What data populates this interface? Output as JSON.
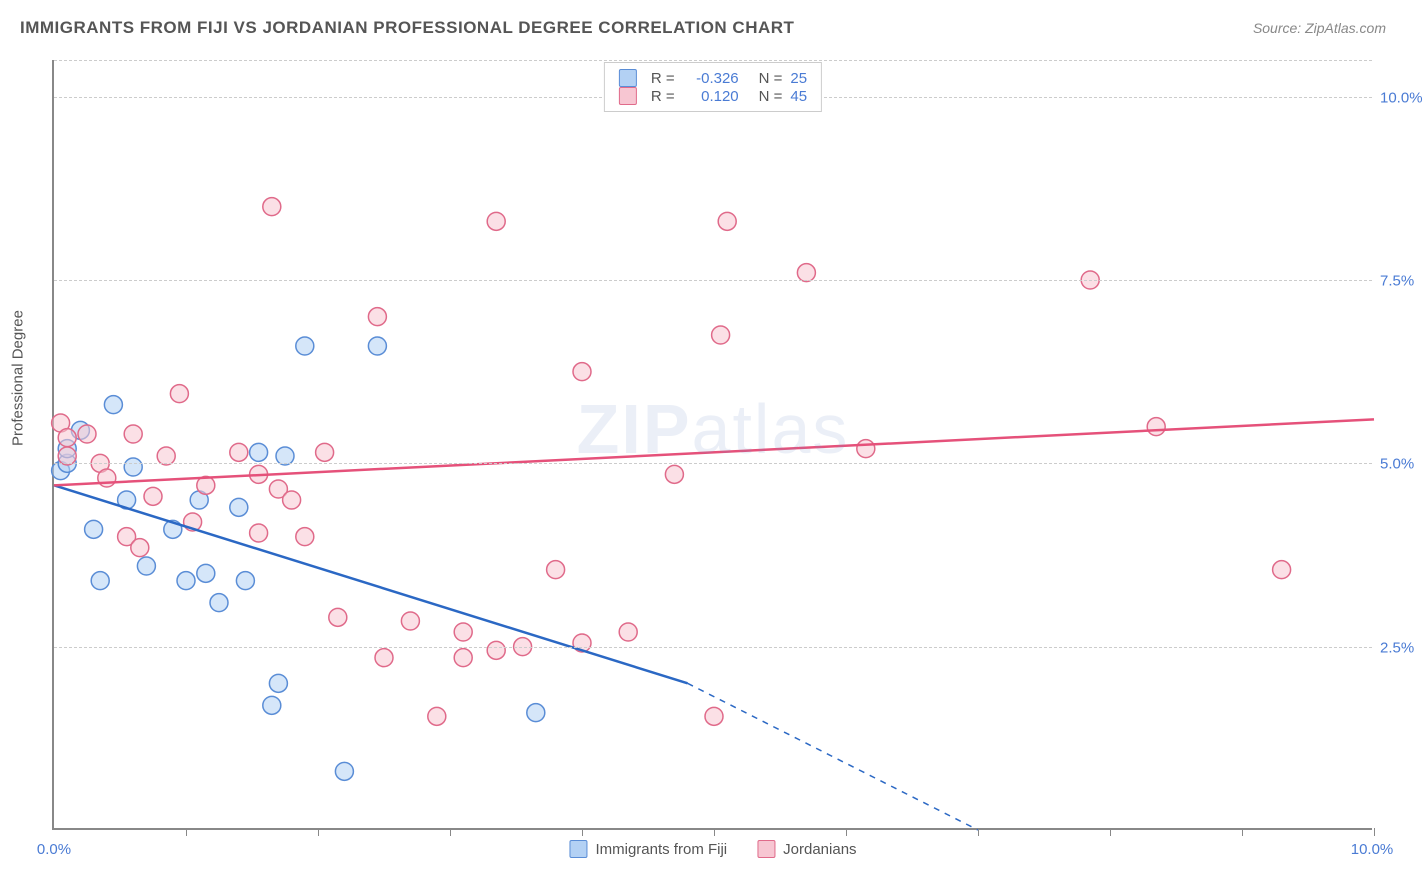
{
  "header": {
    "title": "IMMIGRANTS FROM FIJI VS JORDANIAN PROFESSIONAL DEGREE CORRELATION CHART",
    "source": "Source: ZipAtlas.com"
  },
  "axis": {
    "y_label": "Professional Degree",
    "x_min": 0.0,
    "x_max": 10.0,
    "y_min": 0.0,
    "y_max": 10.5,
    "y_ticks": [
      2.5,
      5.0,
      7.5,
      10.0
    ],
    "y_tick_labels": [
      "2.5%",
      "5.0%",
      "7.5%",
      "10.0%"
    ],
    "x_ticks": [
      1,
      2,
      3,
      4,
      5,
      6,
      7,
      8,
      9,
      10
    ],
    "x_label_left": "0.0%",
    "x_label_right": "10.0%"
  },
  "legend_top": {
    "series": [
      {
        "swatch_fill": "#b3d1f4",
        "swatch_stroke": "#5a8dd6",
        "r": "-0.326",
        "n": "25"
      },
      {
        "swatch_fill": "#f7c6d2",
        "swatch_stroke": "#e06a8a",
        "r": "0.120",
        "n": "45"
      }
    ]
  },
  "legend_bottom": {
    "items": [
      {
        "label": "Immigrants from Fiji",
        "fill": "#b3d1f4",
        "stroke": "#5a8dd6"
      },
      {
        "label": "Jordanians",
        "fill": "#f7c6d2",
        "stroke": "#e06a8a"
      }
    ]
  },
  "watermark": "ZIPatlas",
  "chart": {
    "type": "scatter",
    "background_color": "#ffffff",
    "grid_color": "#cccccc",
    "marker_radius": 9,
    "marker_stroke_width": 1.5,
    "trend_line_width": 2.5,
    "series": [
      {
        "name": "fiji",
        "fill": "#b3d1f4",
        "stroke": "#5a8dd6",
        "fill_opacity": 0.55,
        "trend": {
          "color": "#2b68c4",
          "x1": 0.0,
          "y1": 4.7,
          "x2": 4.8,
          "y2": 2.0,
          "dash_x2": 7.0,
          "dash_y2": 0.0
        },
        "points": [
          [
            0.05,
            4.9
          ],
          [
            0.1,
            5.0
          ],
          [
            0.1,
            5.2
          ],
          [
            0.3,
            4.1
          ],
          [
            0.35,
            3.4
          ],
          [
            0.45,
            5.8
          ],
          [
            0.55,
            4.5
          ],
          [
            0.7,
            3.6
          ],
          [
            0.9,
            4.1
          ],
          [
            1.0,
            3.4
          ],
          [
            1.1,
            4.5
          ],
          [
            1.15,
            3.5
          ],
          [
            1.25,
            3.1
          ],
          [
            1.4,
            4.4
          ],
          [
            1.45,
            3.4
          ],
          [
            1.65,
            1.7
          ],
          [
            1.7,
            2.0
          ],
          [
            1.75,
            5.1
          ],
          [
            1.9,
            6.6
          ],
          [
            2.2,
            0.8
          ],
          [
            2.45,
            6.6
          ],
          [
            3.65,
            1.6
          ],
          [
            0.2,
            5.45
          ],
          [
            0.6,
            4.95
          ],
          [
            1.55,
            5.15
          ]
        ]
      },
      {
        "name": "jordanians",
        "fill": "#f7c6d2",
        "stroke": "#e06a8a",
        "fill_opacity": 0.55,
        "trend": {
          "color": "#e5517a",
          "x1": 0.0,
          "y1": 4.7,
          "x2": 10.0,
          "y2": 5.6
        },
        "points": [
          [
            0.05,
            5.55
          ],
          [
            0.1,
            5.35
          ],
          [
            0.1,
            5.1
          ],
          [
            0.25,
            5.4
          ],
          [
            0.35,
            5.0
          ],
          [
            0.4,
            4.8
          ],
          [
            0.55,
            4.0
          ],
          [
            0.6,
            5.4
          ],
          [
            0.75,
            4.55
          ],
          [
            0.85,
            5.1
          ],
          [
            0.95,
            5.95
          ],
          [
            1.15,
            4.7
          ],
          [
            1.4,
            5.15
          ],
          [
            1.55,
            4.05
          ],
          [
            1.55,
            4.85
          ],
          [
            1.65,
            8.5
          ],
          [
            1.7,
            4.65
          ],
          [
            1.8,
            4.5
          ],
          [
            1.9,
            4.0
          ],
          [
            2.15,
            2.9
          ],
          [
            2.45,
            7.0
          ],
          [
            2.5,
            2.35
          ],
          [
            2.7,
            2.85
          ],
          [
            2.9,
            1.55
          ],
          [
            3.1,
            2.35
          ],
          [
            3.1,
            2.7
          ],
          [
            3.35,
            2.45
          ],
          [
            3.35,
            8.3
          ],
          [
            3.8,
            3.55
          ],
          [
            4.0,
            2.55
          ],
          [
            4.0,
            6.25
          ],
          [
            4.35,
            2.7
          ],
          [
            4.7,
            4.85
          ],
          [
            5.0,
            1.55
          ],
          [
            5.05,
            6.75
          ],
          [
            5.1,
            8.3
          ],
          [
            5.7,
            7.6
          ],
          [
            6.15,
            5.2
          ],
          [
            7.85,
            7.5
          ],
          [
            8.35,
            5.5
          ],
          [
            9.3,
            3.55
          ],
          [
            0.65,
            3.85
          ],
          [
            1.05,
            4.2
          ],
          [
            2.05,
            5.15
          ],
          [
            3.55,
            2.5
          ]
        ]
      }
    ]
  }
}
